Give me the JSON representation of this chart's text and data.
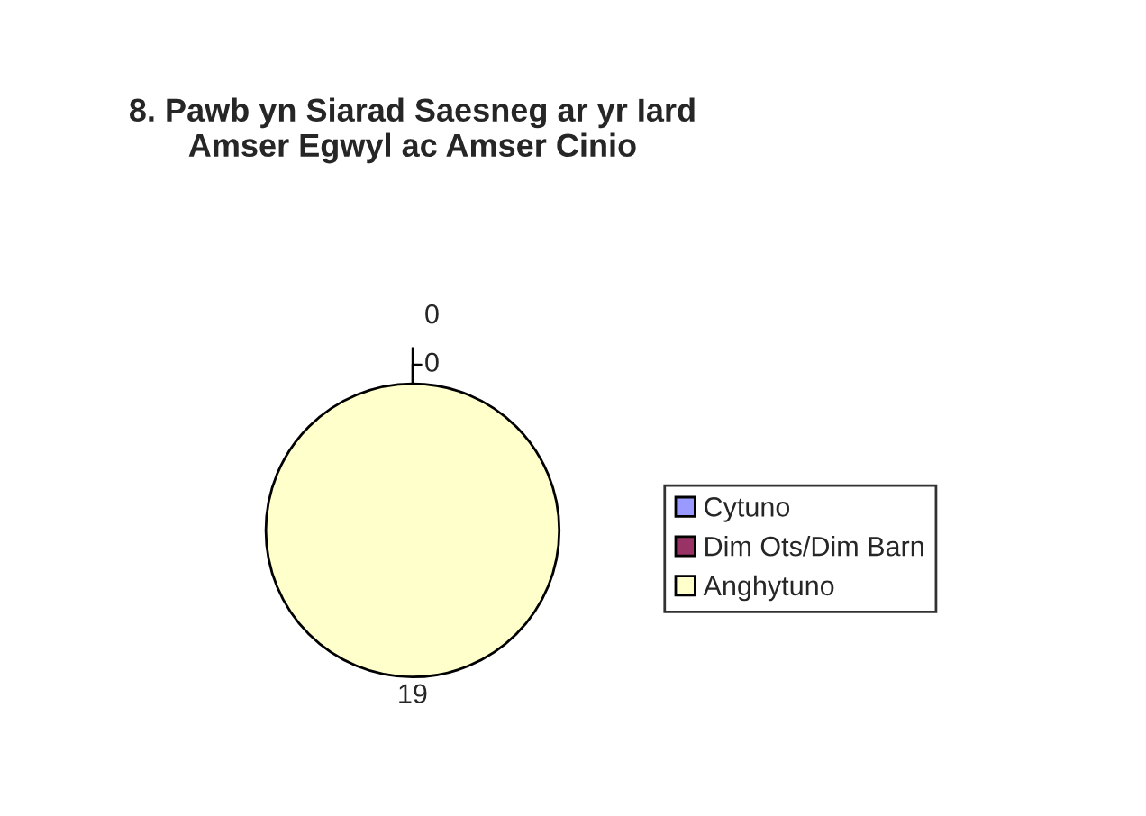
{
  "chart_data": {
    "type": "pie",
    "title": "8. Pawb yn Siarad Saesneg ar yr Iard\nAmser Egwyl ac Amser Cinio",
    "categories": [
      "Cytuno",
      "Dim Ots/Dim Barn",
      "Anghytuno"
    ],
    "values": [
      0,
      0,
      19
    ],
    "colors": [
      "#9999ff",
      "#993366",
      "#ffffcc"
    ],
    "value_labels": [
      "0",
      "0",
      "19"
    ],
    "legend": "right"
  }
}
